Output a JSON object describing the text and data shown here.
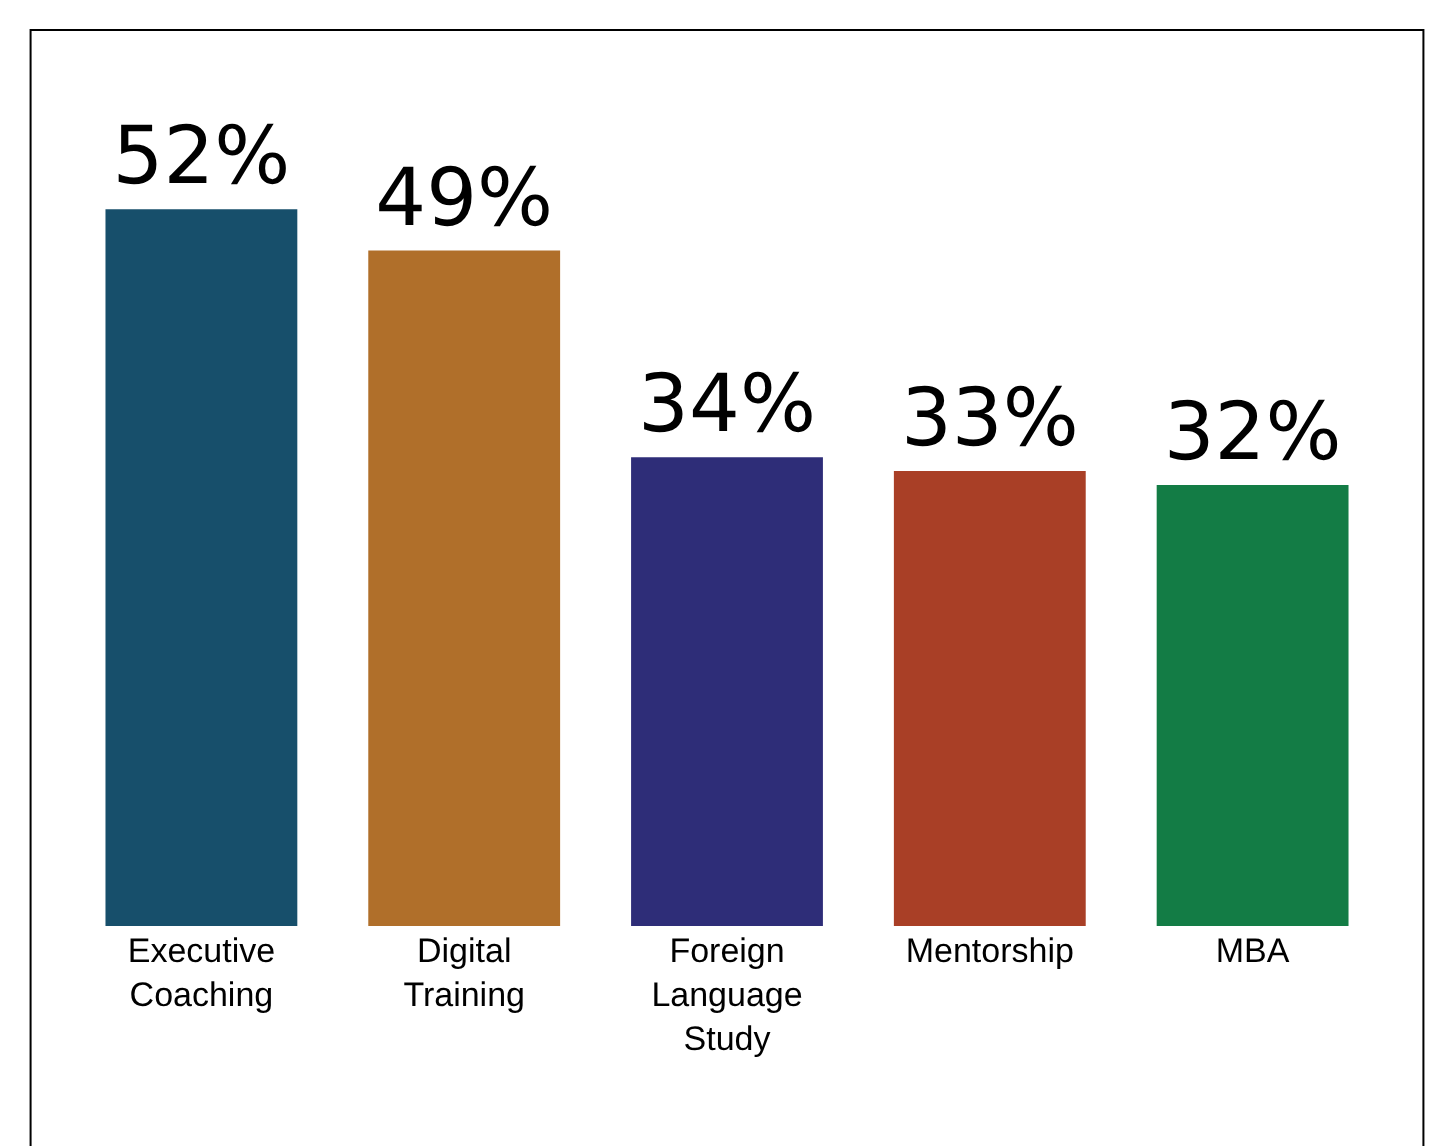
{
  "chart_data": {
    "type": "bar",
    "categories": [
      "Executive Coaching",
      "Digital Training",
      "Foreign Language Study",
      "Mentorship",
      "MBA"
    ],
    "values": [
      52,
      49,
      34,
      33,
      32
    ],
    "colors": [
      "#174f6b",
      "#b06f2a",
      "#2e2d78",
      "#a93f26",
      "#137c45"
    ],
    "value_labels": [
      "52%",
      "49%",
      "34%",
      "33%",
      "32%"
    ]
  }
}
